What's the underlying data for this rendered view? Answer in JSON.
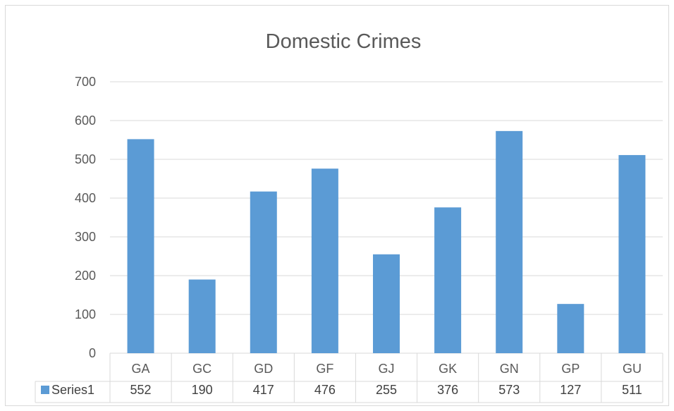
{
  "chart_data": {
    "type": "bar",
    "title": "Domestic Crimes",
    "categories": [
      "GA",
      "GC",
      "GD",
      "GF",
      "GJ",
      "GK",
      "GN",
      "GP",
      "GU"
    ],
    "series": [
      {
        "name": "Series1",
        "values": [
          552,
          190,
          417,
          476,
          255,
          376,
          573,
          127,
          511
        ],
        "color": "#5b9bd5"
      }
    ],
    "ylim": [
      0,
      700
    ],
    "yticks": [
      0,
      100,
      200,
      300,
      400,
      500,
      600,
      700
    ],
    "grid": true,
    "data_table": true,
    "legend_position": "data-table"
  }
}
